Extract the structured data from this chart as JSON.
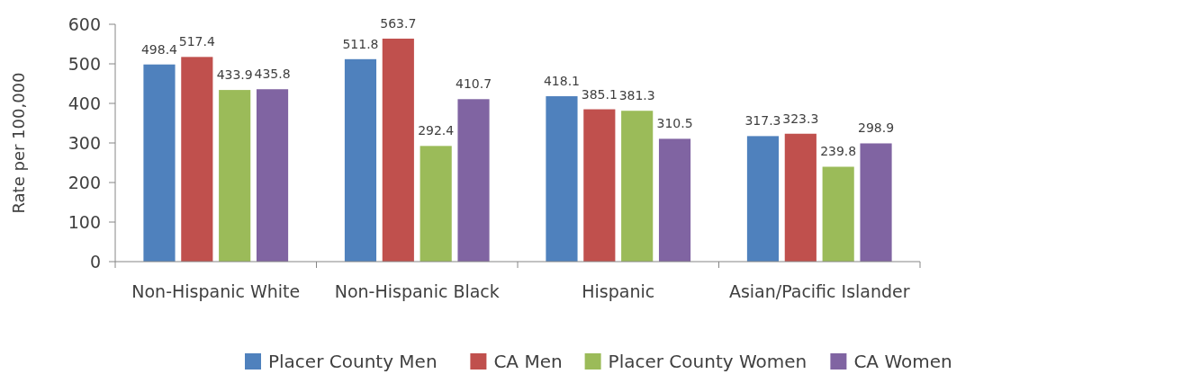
{
  "chart_data": {
    "type": "bar",
    "ylabel": "Rate per 100,000",
    "categories": [
      "Non-Hispanic White",
      "Non-Hispanic Black",
      "Hispanic",
      "Asian/Pacific Islander"
    ],
    "series": [
      {
        "name": "Placer County Men",
        "color": "#4f81bd",
        "values": [
          498.4,
          511.8,
          418.1,
          317.3
        ]
      },
      {
        "name": "CA Men",
        "color": "#c0504d",
        "values": [
          517.4,
          563.7,
          385.1,
          323.3
        ]
      },
      {
        "name": "Placer County Women",
        "color": "#9bbb59",
        "values": [
          433.9,
          292.4,
          381.3,
          239.8
        ]
      },
      {
        "name": "CA Women",
        "color": "#8064a2",
        "values": [
          435.8,
          410.7,
          310.5,
          298.9
        ]
      }
    ],
    "ylim": [
      0,
      600
    ],
    "yticks": [
      0,
      100,
      200,
      300,
      400,
      500,
      600
    ],
    "data_labels": true,
    "legend": "bottom",
    "grid": false
  }
}
